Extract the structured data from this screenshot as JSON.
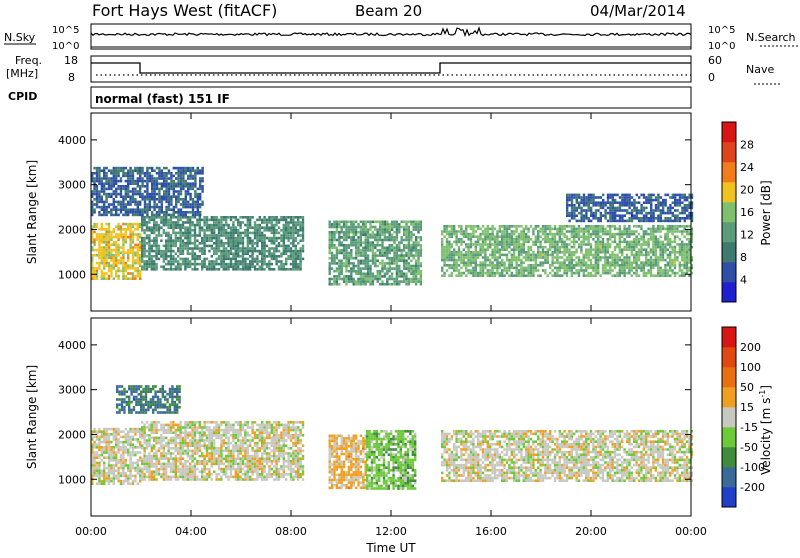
{
  "header": {
    "station": "Fort Hays West (fitACF)",
    "beam": "Beam 20",
    "date": "04/Mar/2014"
  },
  "top_panel": {
    "left_label": "N.Sky",
    "right_label": "N.Search",
    "left_ticks": [
      "10^5",
      "10^0"
    ],
    "right_ticks": [
      "10^5",
      "10^0"
    ]
  },
  "freq_panel": {
    "left_label_line1": "Freq.",
    "left_label_line2": "[MHz]",
    "right_label": "Nave",
    "left_ticks": [
      "18",
      "8"
    ],
    "right_ticks": [
      "60",
      "0"
    ]
  },
  "cpid_panel": {
    "label": "CPID",
    "mode": "normal (fast) 151 IF"
  },
  "colors": {
    "power_scale": [
      "#1f1fd0",
      "#2d4fa8",
      "#3d7a6f",
      "#5a9c7a",
      "#7fc06e",
      "#f0c21f",
      "#f07d1a",
      "#e0441a",
      "#d81414"
    ],
    "velocity_scale": [
      "#2040c8",
      "#3a6a9a",
      "#3f8c3a",
      "#6cc93a",
      "#c8c8c0",
      "#f0a020",
      "#e87010",
      "#e04a10",
      "#d81414"
    ]
  },
  "chart_data": [
    {
      "type": "heatmap",
      "name": "power",
      "xlabel": "",
      "ylabel": "Slant Range [km]",
      "x_ticks": [
        "00:00",
        "04:00",
        "08:00",
        "12:00",
        "16:00",
        "20:00",
        "00:00"
      ],
      "y_ticks": [
        "1000",
        "2000",
        "3000",
        "4000"
      ],
      "ylim": [
        180,
        4600
      ],
      "xlim": [
        0,
        24
      ],
      "colorbar": {
        "label": "Power [dB]",
        "ticks": [
          "4",
          "8",
          "12",
          "16",
          "20",
          "24",
          "28"
        ],
        "range": [
          0,
          30
        ]
      },
      "regions": [
        {
          "x0": 0.0,
          "x1": 2.0,
          "y0": 900,
          "y1": 2150,
          "value": 18
        },
        {
          "x0": 2.0,
          "x1": 8.5,
          "y0": 1100,
          "y1": 2300,
          "value": 10
        },
        {
          "x0": 9.5,
          "x1": 13.2,
          "y0": 800,
          "y1": 2200,
          "value": 12
        },
        {
          "x0": 14.0,
          "x1": 24.0,
          "y0": 950,
          "y1": 2100,
          "value": 14
        },
        {
          "x0": 0.0,
          "x1": 4.5,
          "y0": 2300,
          "y1": 3400,
          "value": 6
        },
        {
          "x0": 19.0,
          "x1": 24.0,
          "y0": 2200,
          "y1": 2800,
          "value": 6
        }
      ]
    },
    {
      "type": "heatmap",
      "name": "velocity",
      "xlabel": "Time UT",
      "ylabel": "Slant Range [km]",
      "x_ticks": [
        "00:00",
        "04:00",
        "08:00",
        "12:00",
        "16:00",
        "20:00",
        "00:00"
      ],
      "y_ticks": [
        "1000",
        "2000",
        "3000",
        "4000"
      ],
      "ylim": [
        180,
        4600
      ],
      "xlim": [
        0,
        24
      ],
      "colorbar": {
        "label": "Velocity [m s",
        "label_sup": "-1",
        "label_end": "]",
        "ticks": [
          "200",
          "100",
          "50",
          "15",
          "-15",
          "-50",
          "-100",
          "-200"
        ],
        "range": [
          -250,
          250
        ]
      },
      "regions": [
        {
          "x0": 0.0,
          "x1": 2.0,
          "y0": 900,
          "y1": 2150,
          "value": 0
        },
        {
          "x0": 2.0,
          "x1": 8.5,
          "y0": 1000,
          "y1": 2300,
          "value": 0
        },
        {
          "x0": 9.5,
          "x1": 11.0,
          "y0": 800,
          "y1": 2000,
          "value": 40
        },
        {
          "x0": 11.0,
          "x1": 13.0,
          "y0": 800,
          "y1": 2100,
          "value": -60
        },
        {
          "x0": 14.0,
          "x1": 24.0,
          "y0": 950,
          "y1": 2100,
          "value": 0
        },
        {
          "x0": 1.0,
          "x1": 3.5,
          "y0": 2500,
          "y1": 3100,
          "value": -150
        }
      ]
    }
  ]
}
